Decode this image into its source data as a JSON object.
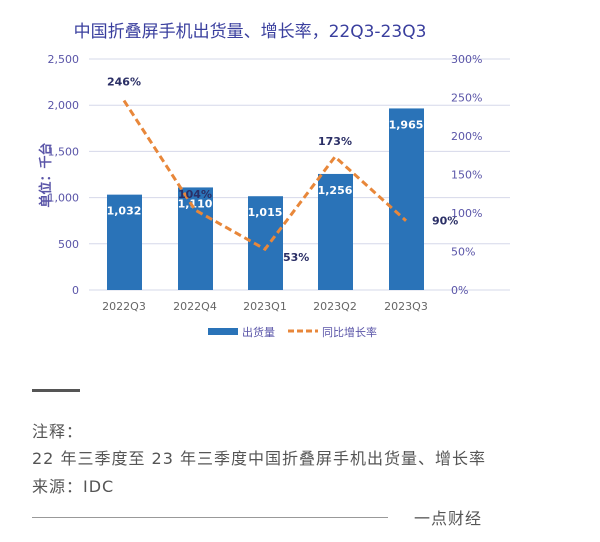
{
  "chart_data": {
    "type": "bar+line",
    "title": "中国折叠屏手机出货量、增长率，22Q3-23Q3",
    "ylabel": "单位：千台",
    "categories": [
      "2022Q3",
      "2022Q4",
      "2023Q1",
      "2023Q2",
      "2023Q3"
    ],
    "ylim": [
      0,
      2500
    ],
    "yticks": [
      "0",
      "500",
      "1,000",
      "1,500",
      "2,000",
      "2,500"
    ],
    "y2lim": [
      0,
      300
    ],
    "y2ticks": [
      "0%",
      "50%",
      "100%",
      "150%",
      "200%",
      "250%",
      "300%"
    ],
    "series": [
      {
        "name": "出货量",
        "type": "bar",
        "values": [
          1032,
          1110,
          1015,
          1256,
          1965
        ],
        "labels": [
          "1,032",
          "1,110",
          "1,015",
          "1,256",
          "1,965"
        ],
        "color": "#2a73b8"
      },
      {
        "name": "同比增长率",
        "type": "line",
        "axis": "right",
        "values": [
          246,
          104,
          53,
          173,
          90
        ],
        "labels": [
          "246%",
          "104%",
          "53%",
          "173%",
          "90%"
        ],
        "color": "#e8873a"
      }
    ],
    "grid": true,
    "legend": "bottom"
  },
  "notes": {
    "heading": "注释：",
    "line1": "22 年三季度至 23 年三季度中国折叠屏手机出货量、增长率",
    "source": "来源：IDC",
    "brand": "一点财经"
  }
}
